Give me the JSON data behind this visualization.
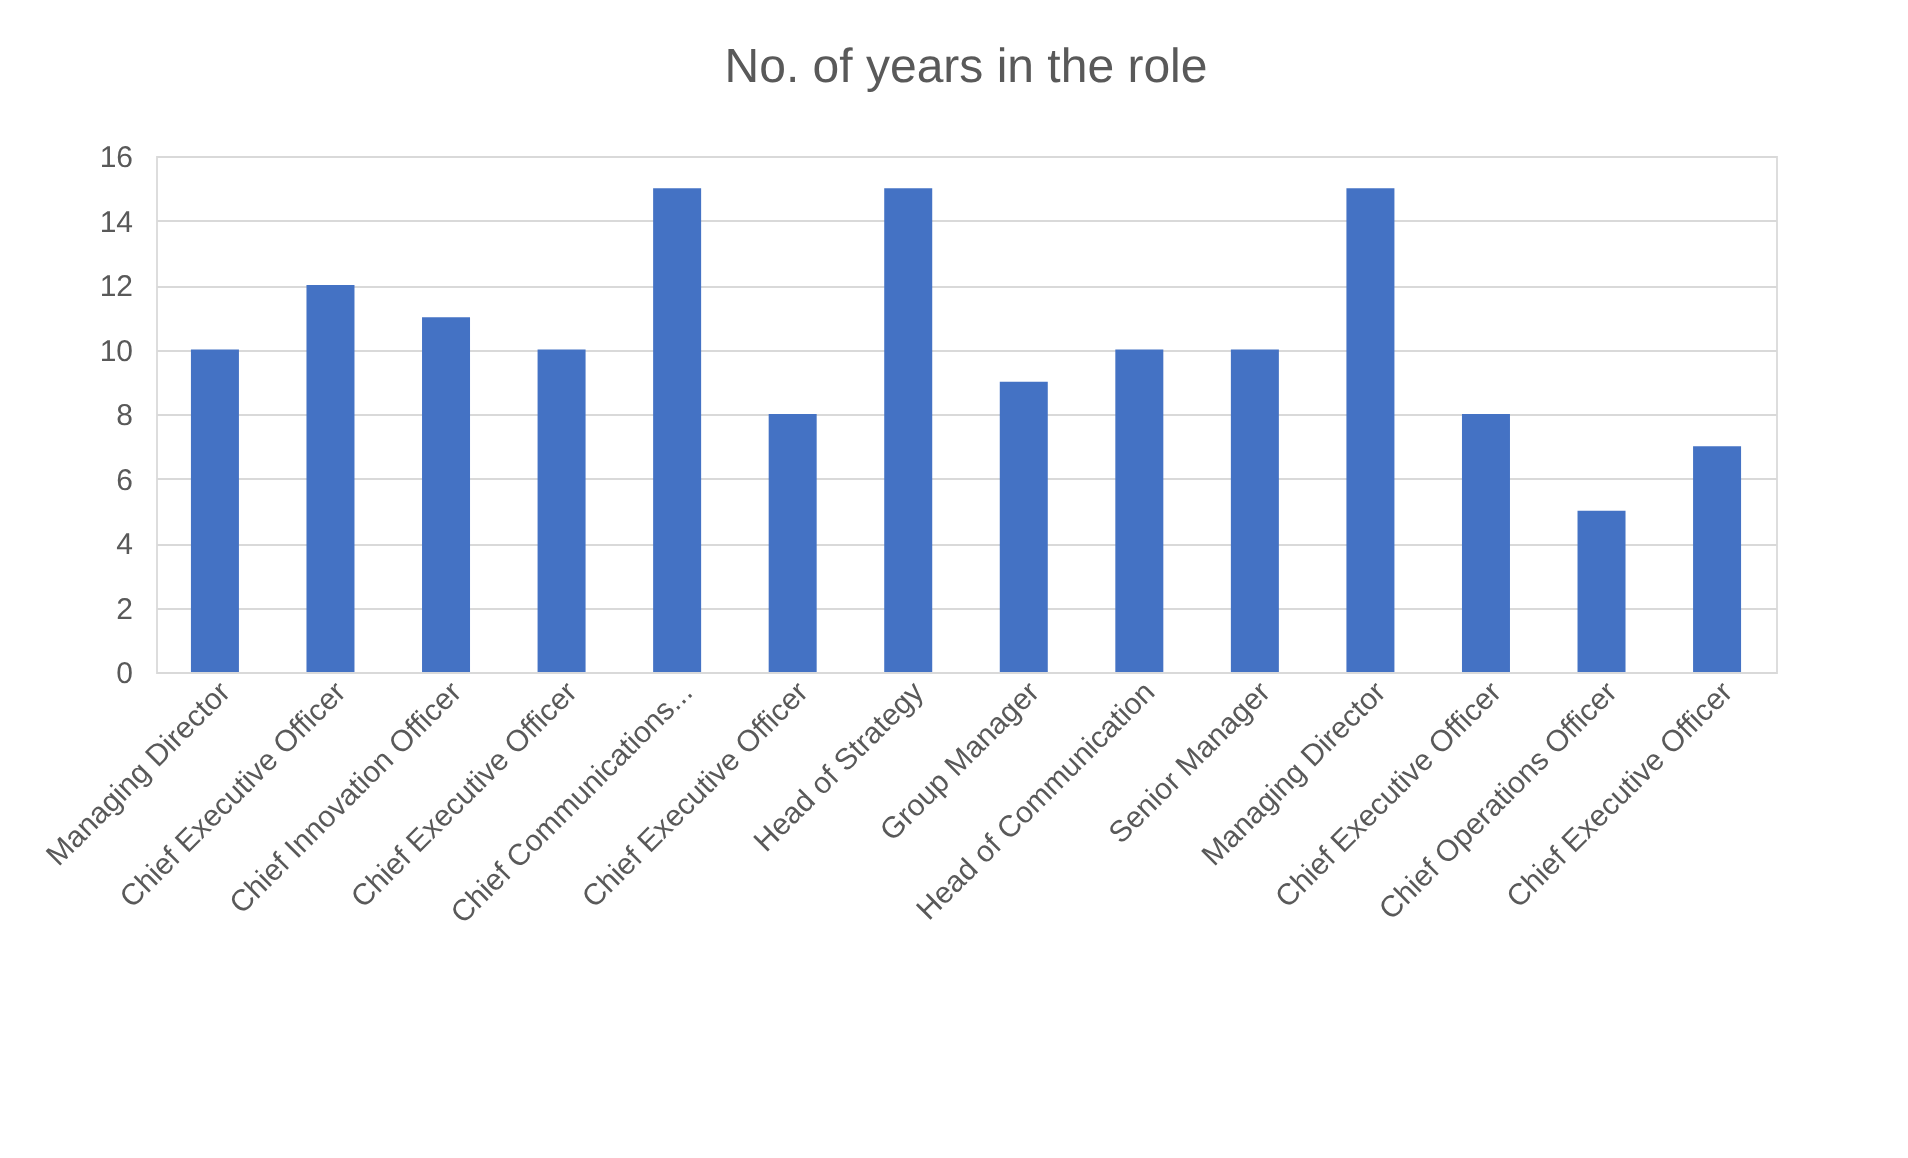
{
  "chart_data": {
    "type": "bar",
    "title": "No. of years in the role",
    "categories": [
      "Managing Director",
      "Chief Executive Officer",
      "Chief Innovation Officer",
      "Chief Executive Officer",
      "Chief Communications...",
      "Chief Executive Officer",
      "Head of Strategy",
      "Group Manager",
      "Head of Communication",
      "Senior Manager",
      "Managing Director",
      "Chief Executive Officer",
      "Chief Operations Officer",
      "Chief Executive Officer"
    ],
    "values": [
      10,
      12,
      11,
      10,
      15,
      8,
      15,
      9,
      10,
      10,
      15,
      8,
      5,
      7
    ],
    "color": "#4472c4",
    "ylim": [
      0,
      16
    ],
    "yticks": [
      0,
      2,
      4,
      6,
      8,
      10,
      12,
      14,
      16
    ],
    "grid": "y"
  }
}
